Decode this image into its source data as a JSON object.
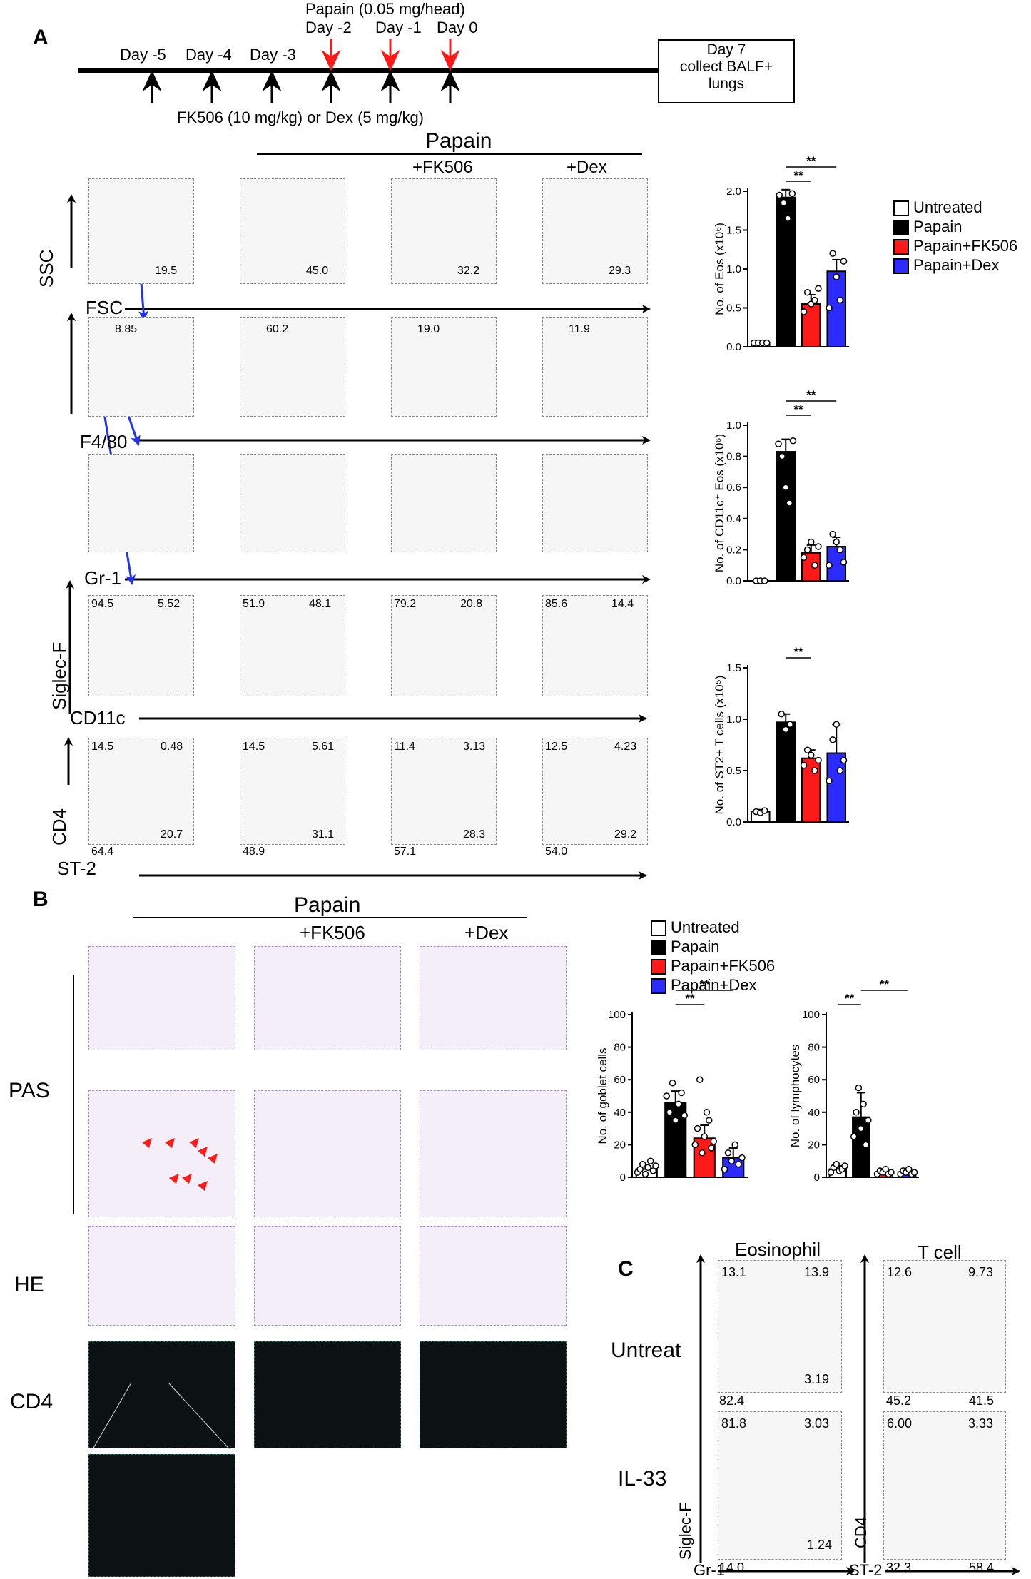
{
  "panelA": {
    "letter": "A",
    "timeline": {
      "days": [
        "Day -5",
        "Day -4",
        "Day -3",
        "Day -2",
        "Day -1",
        "Day 0"
      ],
      "papain_label": "Papain (0.05 mg/head)",
      "drug_label": "FK506 (10 mg/kg) or Dex (5 mg/kg)",
      "end_box": "Day 7\ncollect BALF+\nlungs"
    },
    "headers": {
      "papain": "Papain",
      "fk": "+FK506",
      "dex": "+Dex"
    },
    "axis_labels": {
      "ssc": "SSC",
      "fsc": "FSC",
      "f480": "F4/80",
      "gr1": "Gr-1",
      "siglecf": "Siglec-F",
      "cd11c": "CD11c",
      "cd4": "CD4",
      "st2": "ST-2"
    },
    "row1": [
      "19.5",
      "45.0",
      "32.2",
      "29.3"
    ],
    "row2": [
      "8.85",
      "60.2",
      "19.0",
      "11.9"
    ],
    "row4_ul": [
      "94.5",
      "51.9",
      "79.2",
      "85.6"
    ],
    "row4_ur": [
      "5.52",
      "48.1",
      "20.8",
      "14.4"
    ],
    "row5_ul": [
      "14.5",
      "14.5",
      "11.4",
      "12.5"
    ],
    "row5_ur": [
      "0.48",
      "5.61",
      "3.13",
      "4.23"
    ],
    "row5_lr": [
      "20.7",
      "31.1",
      "28.3",
      "29.2"
    ],
    "row5_ll": [
      "64.4",
      "48.9",
      "57.1",
      "54.0"
    ],
    "legend": [
      "Untreated",
      "Papain",
      "Papain+FK506",
      "Papain+Dex"
    ]
  },
  "panelB": {
    "letter": "B",
    "headers": {
      "papain": "Papain",
      "fk": "+FK506",
      "dex": "+Dex"
    },
    "row_labels": {
      "pas": "PAS",
      "he": "HE",
      "cd4": "CD4"
    },
    "legend": [
      "Untreated",
      "Papain",
      "Papain+FK506",
      "Papain+Dex"
    ]
  },
  "panelC": {
    "letter": "C",
    "col_titles": {
      "eos": "Eosinophil",
      "tcell": "T cell"
    },
    "row_labels": {
      "untreat": "Untreat",
      "il33": "IL-33"
    },
    "axis": {
      "siglecf": "Siglec-F",
      "gr1": "Gr-1",
      "cd4": "CD4",
      "st2": "ST-2"
    },
    "eos_untreat": {
      "ul": "13.1",
      "ur": "13.9",
      "lr": "3.19",
      "ll": "82.4"
    },
    "eos_il33": {
      "ul": "81.8",
      "ur": "3.03",
      "lr": "1.24",
      "ll": "14.0"
    },
    "t_untreat": {
      "ul": "12.6",
      "ur": "9.73",
      "ll": "45.2",
      "lr": "41.5"
    },
    "t_il33": {
      "ul": "6.00",
      "ur": "3.33",
      "ll": "32.3",
      "lr": "58.4"
    }
  },
  "colors": {
    "untreated": "#ffffff",
    "papain": "#000000",
    "fk506": "#ff1a1a",
    "dex": "#2b2bff",
    "red_arrow": "#ff1a1a",
    "blue_arrow": "#2233ee"
  },
  "chart_data": [
    {
      "type": "bar",
      "ylabel": "No. of Eos (x10⁶)",
      "categories": [
        "Untreated",
        "Papain",
        "Papain+FK506",
        "Papain+Dex"
      ],
      "values": [
        0.05,
        1.92,
        0.55,
        0.97
      ],
      "errors": [
        0.02,
        0.1,
        0.12,
        0.15
      ],
      "points": [
        [
          0.05,
          0.05,
          0.05,
          0.05
        ],
        [
          1.95,
          1.85,
          1.65,
          1.97
        ],
        [
          0.45,
          0.7,
          0.55,
          0.6,
          0.75
        ],
        [
          0.5,
          1.2,
          0.9,
          0.6,
          1.1
        ]
      ],
      "ylim": [
        0,
        2.0
      ],
      "yticks": [
        "0.0",
        "0.5",
        "1.0",
        "1.5",
        "2.0"
      ],
      "significance": [
        {
          "pair": [
            1,
            2
          ],
          "label": "**"
        },
        {
          "pair": [
            1,
            3
          ],
          "label": "**"
        }
      ]
    },
    {
      "type": "bar",
      "ylabel": "No. of CD11c⁺ Eos (x10⁶)",
      "categories": [
        "Untreated",
        "Papain",
        "Papain+FK506",
        "Papain+Dex"
      ],
      "values": [
        0.0,
        0.83,
        0.18,
        0.22
      ],
      "errors": [
        0.0,
        0.08,
        0.05,
        0.06
      ],
      "points": [
        [
          0.0,
          0.0,
          0.0
        ],
        [
          0.88,
          0.8,
          0.6,
          0.5,
          0.9
        ],
        [
          0.15,
          0.2,
          0.25,
          0.1,
          0.22
        ],
        [
          0.1,
          0.3,
          0.25,
          0.2,
          0.12
        ]
      ],
      "ylim": [
        0,
        1.0
      ],
      "yticks": [
        "0.0",
        "0.2",
        "0.4",
        "0.6",
        "0.8",
        "1.0"
      ],
      "significance": [
        {
          "pair": [
            1,
            2
          ],
          "label": "**"
        },
        {
          "pair": [
            1,
            3
          ],
          "label": "**"
        }
      ]
    },
    {
      "type": "bar",
      "ylabel": "No. of ST2+ T cells (x10⁵)",
      "categories": [
        "Untreated",
        "Papain",
        "Papain+FK506",
        "Papain+Dex"
      ],
      "values": [
        0.1,
        0.97,
        0.62,
        0.67
      ],
      "errors": [
        0.02,
        0.08,
        0.08,
        0.28
      ],
      "points": [
        [
          0.1,
          0.09,
          0.11
        ],
        [
          1.05,
          0.9,
          0.95
        ],
        [
          0.55,
          0.7,
          0.65,
          0.5,
          0.6
        ],
        [
          0.4,
          0.8,
          0.95,
          0.5,
          0.6
        ]
      ],
      "ylim": [
        0,
        1.5
      ],
      "yticks": [
        "0.0",
        "0.5",
        "1.0",
        "1.5"
      ],
      "significance": [
        {
          "pair": [
            1,
            2
          ],
          "label": "**"
        }
      ]
    },
    {
      "type": "bar",
      "ylabel": "No. of goblet cells",
      "categories": [
        "Untreated",
        "Papain",
        "Papain+FK506",
        "Papain+Dex"
      ],
      "values": [
        5,
        46,
        24,
        12
      ],
      "errors": [
        2,
        7,
        8,
        6
      ],
      "points": [
        [
          3,
          5,
          8,
          2,
          6,
          10,
          4,
          7
        ],
        [
          50,
          40,
          58,
          35,
          45,
          52,
          38
        ],
        [
          20,
          30,
          60,
          15,
          25,
          40,
          35,
          18,
          22
        ],
        [
          5,
          15,
          10,
          20,
          8,
          12
        ]
      ],
      "ylim": [
        0,
        100
      ],
      "yticks": [
        "0",
        "20",
        "40",
        "60",
        "80",
        "100"
      ],
      "significance": [
        {
          "pair": [
            1,
            2
          ],
          "label": "**"
        },
        {
          "pair": [
            1,
            3
          ],
          "label": "**"
        }
      ]
    },
    {
      "type": "bar",
      "ylabel": "No. of lymphocytes",
      "categories": [
        "Untreated",
        "Papain",
        "Papain+FK506",
        "Papain+Dex"
      ],
      "values": [
        5,
        37,
        3,
        3
      ],
      "errors": [
        2,
        15,
        1,
        1
      ],
      "points": [
        [
          3,
          6,
          8,
          4,
          5,
          7
        ],
        [
          25,
          40,
          55,
          30,
          45,
          20,
          35
        ],
        [
          2,
          4,
          3,
          5,
          2,
          3
        ],
        [
          2,
          4,
          3,
          5,
          2,
          3
        ]
      ],
      "ylim": [
        0,
        100
      ],
      "yticks": [
        "0",
        "20",
        "40",
        "60",
        "80",
        "100"
      ],
      "significance": [
        {
          "pair": [
            0,
            1
          ],
          "label": "**"
        },
        {
          "pair": [
            1,
            3
          ],
          "label": "**"
        }
      ]
    }
  ]
}
